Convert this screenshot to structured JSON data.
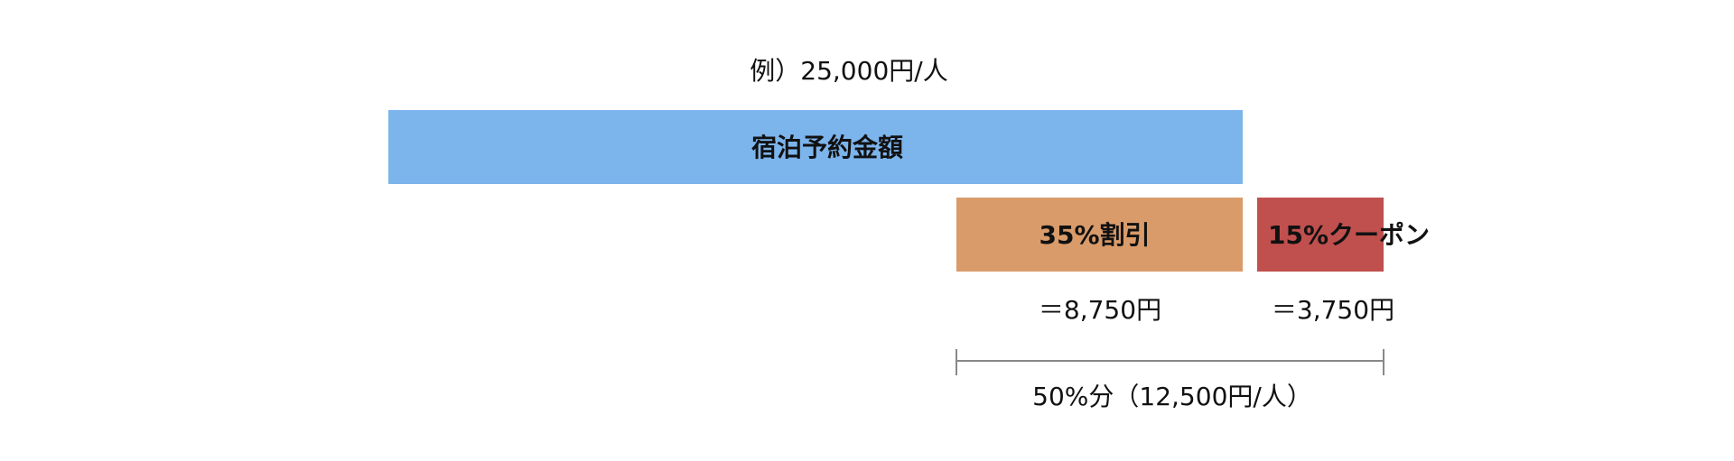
{
  "example": "例）25,000円/人",
  "bars": [
    {
      "label": "宿泊予約金額"
    },
    {
      "label": "35%割引",
      "amount": "＝8,750円"
    },
    {
      "label": "15%クーポン",
      "amount": "＝3,750円"
    }
  ],
  "total": "50%分（12,500円/人）"
}
